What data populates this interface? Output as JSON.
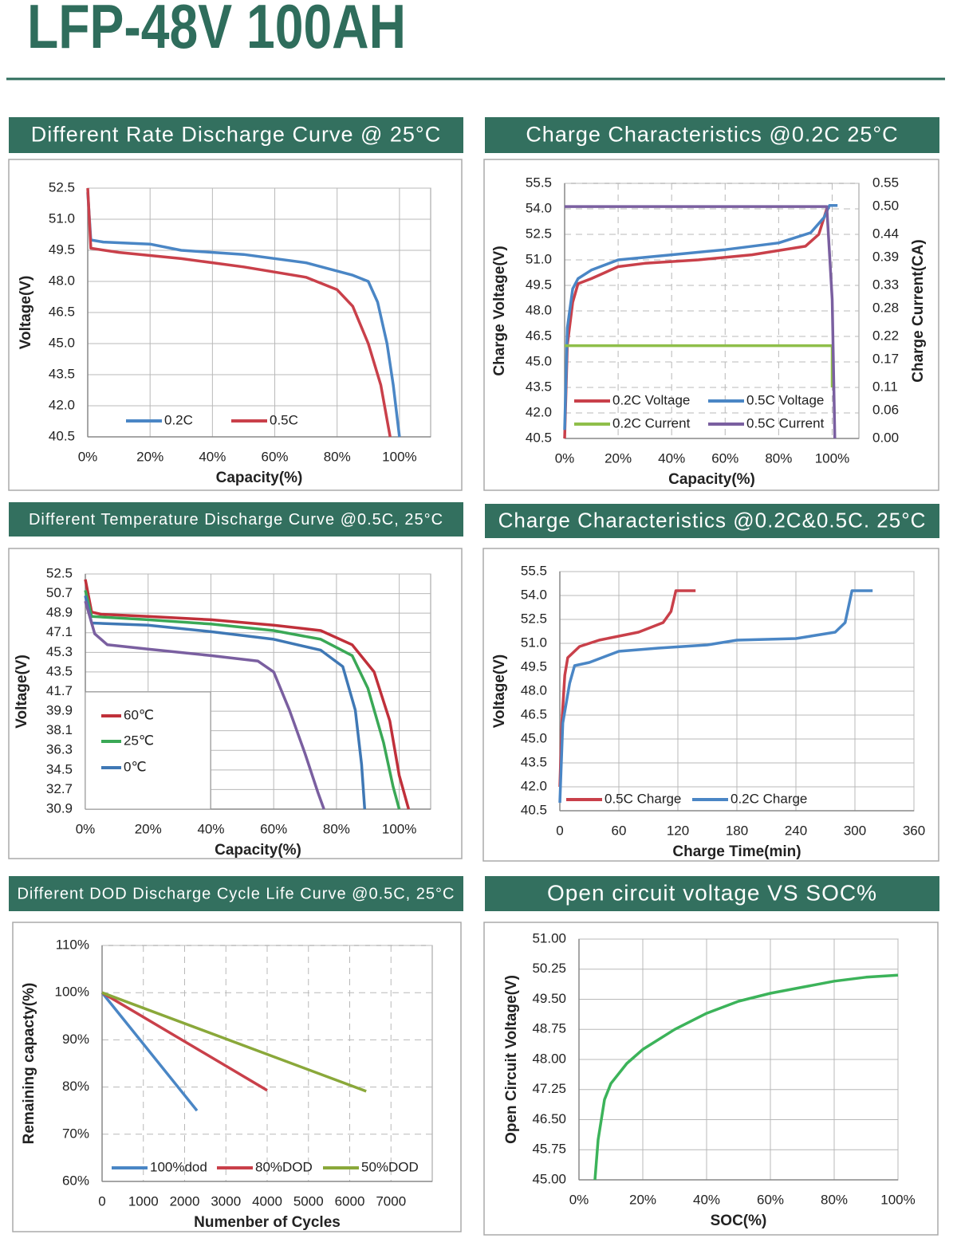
{
  "page_title": "LFP-48V 100AH",
  "chart_data": [
    {
      "type": "line",
      "title": "Different Rate Discharge Curve @ 25°C",
      "xlabel": "Capacity(%)",
      "ylabel": "Voltage(V)",
      "xlim": [
        0,
        110
      ],
      "ylim": [
        40.5,
        52.5
      ],
      "xticks": [
        {
          "value": 0,
          "label": "0%"
        },
        {
          "value": 20,
          "label": "20%"
        },
        {
          "value": 40,
          "label": "40%"
        },
        {
          "value": 60,
          "label": "60%"
        },
        {
          "value": 80,
          "label": "80%"
        },
        {
          "value": 100,
          "label": "100%"
        }
      ],
      "yticks": [
        40.5,
        {
          "value": 42,
          "label": "42.0"
        },
        43.5,
        {
          "value": 45,
          "label": "45.0"
        },
        46.5,
        {
          "value": 48,
          "label": "48.0"
        },
        49.5,
        {
          "value": 51,
          "label": "51.0"
        },
        52.5
      ],
      "grid": true,
      "grid_style": "solid",
      "series": [
        {
          "name": "0.2C",
          "color": "#4a86c5",
          "x": [
            0,
            1,
            5,
            20,
            30,
            50,
            70,
            85,
            90,
            93,
            96,
            98,
            100
          ],
          "values": [
            52.3,
            50.0,
            49.9,
            49.8,
            49.5,
            49.3,
            48.9,
            48.3,
            48.0,
            47.0,
            45.0,
            43.0,
            40.5
          ]
        },
        {
          "name": "0.5C",
          "color": "#c9404a",
          "x": [
            0,
            1,
            10,
            30,
            50,
            70,
            80,
            85,
            90,
            94,
            97
          ],
          "values": [
            52.5,
            49.6,
            49.4,
            49.1,
            48.7,
            48.2,
            47.6,
            46.8,
            45.0,
            43.0,
            40.5
          ]
        }
      ]
    },
    {
      "type": "line",
      "title": "Charge Characteristics @0.2C   25°C",
      "xlabel": "Capacity(%)",
      "ylabel": "Charge Voltage(V)",
      "y2label": "Charge Current(CA)",
      "xlim": [
        0,
        110
      ],
      "ylim": [
        40.5,
        55.5
      ],
      "y2lim": [
        0,
        0.55
      ],
      "xticks": [
        {
          "value": 0,
          "label": "0%"
        },
        {
          "value": 20,
          "label": "20%"
        },
        {
          "value": 40,
          "label": "40%"
        },
        {
          "value": 60,
          "label": "60%"
        },
        {
          "value": 80,
          "label": "80%"
        },
        {
          "value": 100,
          "label": "100%"
        }
      ],
      "yticks": [
        40.5,
        {
          "value": 42,
          "label": "42.0"
        },
        43.5,
        {
          "value": 45,
          "label": "45.0"
        },
        46.5,
        {
          "value": 48,
          "label": "48.0"
        },
        49.5,
        {
          "value": 51,
          "label": "51.0"
        },
        52.5,
        {
          "value": 54,
          "label": "54.0"
        },
        55.5
      ],
      "y2ticks": [
        {
          "value": 0,
          "label": "0.00"
        },
        0.06,
        0.11,
        0.17,
        0.22,
        0.28,
        0.33,
        0.39,
        0.44,
        {
          "value": 0.5,
          "label": "0.50"
        },
        0.55
      ],
      "grid": true,
      "grid_style": "dashed",
      "series": [
        {
          "name": "0.2C Voltage",
          "color": "#c9404a",
          "x": [
            0,
            1,
            3,
            5,
            10,
            20,
            30,
            50,
            70,
            90,
            95,
            98,
            99
          ],
          "values": [
            40.5,
            46.0,
            48.5,
            49.6,
            49.9,
            50.6,
            50.8,
            51.0,
            51.3,
            51.8,
            52.5,
            54.0,
            54.1
          ]
        },
        {
          "name": "0.5C Voltage",
          "color": "#4a86c5",
          "x": [
            0,
            1,
            3,
            5,
            10,
            20,
            40,
            60,
            80,
            92,
            97,
            99,
            102
          ],
          "values": [
            41.0,
            47.0,
            49.3,
            49.9,
            50.4,
            51.0,
            51.3,
            51.6,
            52.0,
            52.6,
            53.5,
            54.2,
            54.2
          ]
        },
        {
          "name": "0.2C Current",
          "color": "#8fbf4a",
          "axis": "y2",
          "x": [
            0,
            100,
            100
          ],
          "values": [
            0.2,
            0.2,
            0.11
          ]
        },
        {
          "name": "0.5C Current",
          "color": "#7a5fa0",
          "axis": "y2",
          "x": [
            0,
            98,
            100,
            101
          ],
          "values": [
            0.5,
            0.5,
            0.3,
            0.0
          ]
        }
      ]
    },
    {
      "type": "line",
      "title": "Different Temperature Discharge Curve @0.5C, 25°C",
      "xlabel": "Capacity(%)",
      "ylabel": "Voltage(V)",
      "xlim": [
        0,
        110
      ],
      "ylim": [
        30.9,
        52.5
      ],
      "xticks": [
        {
          "value": 0,
          "label": "0%"
        },
        {
          "value": 20,
          "label": "20%"
        },
        {
          "value": 40,
          "label": "40%"
        },
        {
          "value": 60,
          "label": "60%"
        },
        {
          "value": 80,
          "label": "80%"
        },
        {
          "value": 100,
          "label": "100%"
        }
      ],
      "yticks": [
        30.9,
        32.7,
        34.5,
        36.3,
        38.1,
        39.9,
        41.7,
        43.5,
        45.3,
        47.1,
        48.9,
        50.7,
        52.5
      ],
      "grid": true,
      "grid_style": "solid",
      "series": [
        {
          "name": "60℃",
          "color": "#c0303a",
          "x": [
            0,
            2,
            5,
            20,
            40,
            60,
            75,
            85,
            92,
            97,
            100,
            103
          ],
          "values": [
            52.0,
            49.0,
            48.8,
            48.6,
            48.3,
            47.8,
            47.3,
            46.0,
            43.5,
            39.0,
            34.0,
            30.9
          ]
        },
        {
          "name": "25℃",
          "color": "#3aa856",
          "x": [
            0,
            2,
            20,
            40,
            60,
            75,
            85,
            90,
            95,
            98,
            100
          ],
          "values": [
            51.0,
            48.6,
            48.3,
            47.9,
            47.3,
            46.5,
            45.0,
            42.0,
            37.0,
            33.0,
            30.9
          ]
        },
        {
          "name": "0℃",
          "color": "#3f78b5",
          "x": [
            0,
            2,
            20,
            40,
            60,
            75,
            82,
            86,
            88,
            89
          ],
          "values": [
            50.5,
            48.0,
            47.8,
            47.2,
            46.5,
            45.5,
            44.0,
            40.0,
            35.0,
            30.9
          ]
        },
        {
          "color": "#7a5fa0",
          "x": [
            0,
            3,
            7,
            20,
            40,
            55,
            60,
            65,
            70,
            74,
            76
          ],
          "values": [
            50.0,
            47.0,
            46.0,
            45.6,
            45.0,
            44.5,
            43.5,
            40.0,
            36.0,
            32.5,
            30.9
          ]
        }
      ]
    },
    {
      "type": "line",
      "title": "Charge Characteristics @0.2C&0.5C. 25°C",
      "xlabel": "Charge Time(min)",
      "ylabel": "Voltage(V)",
      "xlim": [
        0,
        360
      ],
      "ylim": [
        40.5,
        55.5
      ],
      "xticks": [
        0,
        60,
        120,
        180,
        240,
        300,
        360
      ],
      "yticks": [
        40.5,
        {
          "value": 42,
          "label": "42.0"
        },
        43.5,
        {
          "value": 45,
          "label": "45.0"
        },
        46.5,
        {
          "value": 48,
          "label": "48.0"
        },
        49.5,
        {
          "value": 51,
          "label": "51.0"
        },
        52.5,
        {
          "value": 54,
          "label": "54.0"
        },
        55.5
      ],
      "grid": true,
      "grid_style": "solid",
      "series": [
        {
          "name": "0.5C Charge",
          "color": "#c9404a",
          "x": [
            0,
            2,
            5,
            8,
            20,
            40,
            80,
            105,
            113,
            118,
            138
          ],
          "values": [
            42.0,
            46.0,
            49.0,
            50.1,
            50.8,
            51.2,
            51.7,
            52.3,
            53.0,
            54.3,
            54.3
          ]
        },
        {
          "name": "0.2C Charge",
          "color": "#4a86c5",
          "x": [
            0,
            3,
            10,
            15,
            30,
            60,
            100,
            150,
            180,
            240,
            280,
            290,
            297,
            318
          ],
          "values": [
            41.0,
            46.0,
            48.5,
            49.6,
            49.8,
            50.5,
            50.7,
            50.9,
            51.2,
            51.3,
            51.7,
            52.3,
            54.3,
            54.3
          ]
        }
      ]
    },
    {
      "type": "line",
      "title": "Different DOD Discharge Cycle Life Curve @0.5C, 25°C",
      "xlabel": "Numenber of Cycles",
      "ylabel": "Remaining capacty(%)",
      "xlim": [
        0,
        8000
      ],
      "ylim": [
        60,
        110
      ],
      "xticks": [
        0,
        1000,
        2000,
        3000,
        4000,
        5000,
        6000,
        7000
      ],
      "yticks": [
        {
          "value": 60,
          "label": "60%"
        },
        {
          "value": 70,
          "label": "70%"
        },
        {
          "value": 80,
          "label": "80%"
        },
        {
          "value": 90,
          "label": "90%"
        },
        {
          "value": 100,
          "label": "100%"
        },
        {
          "value": 110,
          "label": "110%"
        }
      ],
      "grid": true,
      "grid_style": "dashed",
      "series": [
        {
          "name": "100%dod",
          "color": "#4a86c5",
          "x": [
            0,
            2300
          ],
          "values": [
            100,
            75
          ]
        },
        {
          "name": "80%DOD",
          "color": "#c9404a",
          "x": [
            0,
            4000
          ],
          "values": [
            100,
            79.3
          ]
        },
        {
          "name": "50%DOD",
          "color": "#8aa83a",
          "x": [
            0,
            6400
          ],
          "values": [
            100,
            79.1
          ]
        }
      ]
    },
    {
      "type": "line",
      "title": "Open circuit voltage VS SOC%",
      "xlabel": "SOC(%)",
      "ylabel": "Open Circuit Voltage(V)",
      "xlim": [
        0,
        100
      ],
      "ylim": [
        45,
        51
      ],
      "xticks": [
        {
          "value": 0,
          "label": "0%"
        },
        {
          "value": 20,
          "label": "20%"
        },
        {
          "value": 40,
          "label": "40%"
        },
        {
          "value": 60,
          "label": "60%"
        },
        {
          "value": 80,
          "label": "80%"
        },
        {
          "value": 100,
          "label": "100%"
        }
      ],
      "yticks": [
        {
          "value": 45,
          "label": "45.00"
        },
        45.75,
        {
          "value": 46.5,
          "label": "46.50"
        },
        47.25,
        {
          "value": 48,
          "label": "48.00"
        },
        48.75,
        {
          "value": 49.5,
          "label": "49.50"
        },
        50.25,
        {
          "value": 51,
          "label": "51.00"
        }
      ],
      "grid": true,
      "grid_style": "solid",
      "series": [
        {
          "color": "#3cb35a",
          "x": [
            5,
            6,
            8,
            10,
            15,
            20,
            30,
            40,
            50,
            60,
            70,
            80,
            90,
            100
          ],
          "values": [
            45.0,
            46.0,
            47.0,
            47.4,
            47.9,
            48.25,
            48.75,
            49.15,
            49.45,
            49.65,
            49.8,
            49.95,
            50.05,
            50.1
          ]
        }
      ]
    }
  ]
}
